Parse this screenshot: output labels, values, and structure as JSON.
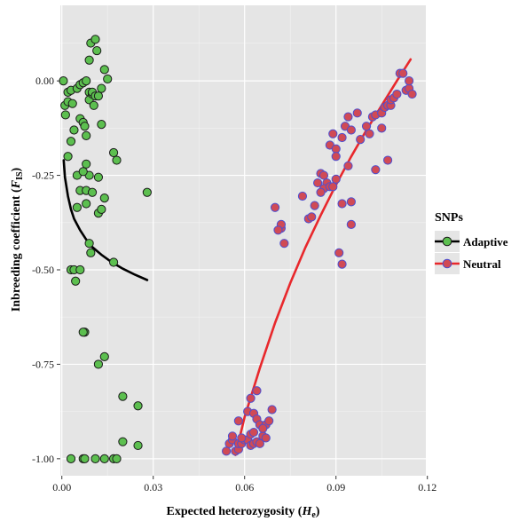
{
  "chart_data": {
    "type": "scatter",
    "title": "",
    "xlabel": "Expected heterozygosity",
    "xlabel_var": "H",
    "xlabel_sub": "e",
    "ylabel": "Inbreeding coefficient",
    "ylabel_var": "F",
    "ylabel_sub": "IS",
    "xlim": [
      -0.0005,
      0.1195
    ],
    "ylim": [
      -1.045,
      0.2
    ],
    "x_ticks": [
      0.0,
      0.03,
      0.06,
      0.09,
      0.12
    ],
    "x_tick_labels": [
      "0.00",
      "0.03",
      "0.06",
      "0.09",
      "0.12"
    ],
    "y_ticks": [
      0.0,
      -0.25,
      -0.5,
      -0.75,
      -1.0
    ],
    "y_tick_labels": [
      "0.00",
      "-0.25",
      "-0.50",
      "-0.75",
      "-1.00"
    ],
    "grid": true,
    "legend": {
      "title": "SNPs",
      "placement": "right"
    },
    "series": [
      {
        "name": "Adaptive",
        "point_fill": "#5cbf4f",
        "point_stroke": "#1b1b1b",
        "line_color": "#000000",
        "points": [
          [
            0.0005,
            0.0
          ],
          [
            0.001,
            -0.065
          ],
          [
            0.0012,
            -0.09
          ],
          [
            0.002,
            -0.03
          ],
          [
            0.003,
            -0.025
          ],
          [
            0.002,
            -0.055
          ],
          [
            0.0035,
            -0.06
          ],
          [
            0.004,
            -0.13
          ],
          [
            0.003,
            -0.16
          ],
          [
            0.005,
            -0.02
          ],
          [
            0.006,
            -0.01
          ],
          [
            0.007,
            -0.005
          ],
          [
            0.006,
            -0.1
          ],
          [
            0.007,
            -0.11
          ],
          [
            0.0075,
            -0.12
          ],
          [
            0.008,
            -0.145
          ],
          [
            0.008,
            0.0
          ],
          [
            0.009,
            -0.03
          ],
          [
            0.009,
            -0.05
          ],
          [
            0.01,
            -0.035
          ],
          [
            0.01,
            -0.03
          ],
          [
            0.011,
            -0.04
          ],
          [
            0.0105,
            -0.065
          ],
          [
            0.012,
            -0.04
          ],
          [
            0.013,
            -0.02
          ],
          [
            0.0095,
            0.1
          ],
          [
            0.011,
            0.11
          ],
          [
            0.0115,
            0.08
          ],
          [
            0.009,
            0.055
          ],
          [
            0.014,
            0.03
          ],
          [
            0.015,
            0.005
          ],
          [
            0.013,
            -0.115
          ],
          [
            0.017,
            -0.19
          ],
          [
            0.018,
            -0.21
          ],
          [
            0.002,
            -0.2
          ],
          [
            0.005,
            -0.25
          ],
          [
            0.009,
            -0.25
          ],
          [
            0.007,
            -0.24
          ],
          [
            0.006,
            -0.29
          ],
          [
            0.008,
            -0.29
          ],
          [
            0.01,
            -0.295
          ],
          [
            0.008,
            -0.22
          ],
          [
            0.012,
            -0.255
          ],
          [
            0.014,
            -0.31
          ],
          [
            0.012,
            -0.35
          ],
          [
            0.013,
            -0.34
          ],
          [
            0.008,
            -0.325
          ],
          [
            0.005,
            -0.335
          ],
          [
            0.028,
            -0.295
          ],
          [
            0.009,
            -0.43
          ],
          [
            0.0095,
            -0.455
          ],
          [
            0.003,
            -0.5
          ],
          [
            0.004,
            -0.5
          ],
          [
            0.0045,
            -0.53
          ],
          [
            0.006,
            -0.5
          ],
          [
            0.017,
            -0.48
          ],
          [
            0.0075,
            -0.665
          ],
          [
            0.007,
            -0.665
          ],
          [
            0.014,
            -0.73
          ],
          [
            0.012,
            -0.75
          ],
          [
            0.02,
            -0.835
          ],
          [
            0.025,
            -0.86
          ],
          [
            0.02,
            -0.955
          ],
          [
            0.025,
            -0.965
          ],
          [
            0.003,
            -1.0
          ],
          [
            0.007,
            -1.0
          ],
          [
            0.0075,
            -1.0
          ],
          [
            0.011,
            -1.0
          ],
          [
            0.014,
            -1.0
          ],
          [
            0.017,
            -1.0
          ],
          [
            0.018,
            -1.0
          ]
        ],
        "fit": [
          [
            0.0006,
            -0.21
          ],
          [
            0.001,
            -0.255
          ],
          [
            0.002,
            -0.305
          ],
          [
            0.003,
            -0.34
          ],
          [
            0.004,
            -0.365
          ],
          [
            0.006,
            -0.395
          ],
          [
            0.008,
            -0.42
          ],
          [
            0.01,
            -0.44
          ],
          [
            0.013,
            -0.46
          ],
          [
            0.016,
            -0.478
          ],
          [
            0.02,
            -0.497
          ],
          [
            0.024,
            -0.513
          ],
          [
            0.028,
            -0.527
          ]
        ]
      },
      {
        "name": "Neutral",
        "point_fill": "#d04a55",
        "point_stroke": "#4d4fd0",
        "line_color": "#e8282c",
        "points": [
          [
            0.054,
            -0.98
          ],
          [
            0.055,
            -0.96
          ],
          [
            0.056,
            -0.95
          ],
          [
            0.057,
            -0.98
          ],
          [
            0.058,
            -0.975
          ],
          [
            0.056,
            -0.94
          ],
          [
            0.058,
            -0.96
          ],
          [
            0.059,
            -0.96
          ],
          [
            0.06,
            -0.95
          ],
          [
            0.061,
            -0.95
          ],
          [
            0.059,
            -0.945
          ],
          [
            0.062,
            -0.965
          ],
          [
            0.063,
            -0.96
          ],
          [
            0.064,
            -0.955
          ],
          [
            0.065,
            -0.96
          ],
          [
            0.066,
            -0.94
          ],
          [
            0.067,
            -0.945
          ],
          [
            0.062,
            -0.935
          ],
          [
            0.063,
            -0.93
          ],
          [
            0.058,
            -0.9
          ],
          [
            0.061,
            -0.875
          ],
          [
            0.062,
            -0.84
          ],
          [
            0.064,
            -0.82
          ],
          [
            0.063,
            -0.88
          ],
          [
            0.064,
            -0.895
          ],
          [
            0.065,
            -0.91
          ],
          [
            0.067,
            -0.91
          ],
          [
            0.068,
            -0.9
          ],
          [
            0.069,
            -0.87
          ],
          [
            0.066,
            -0.92
          ],
          [
            0.07,
            -0.335
          ],
          [
            0.072,
            -0.39
          ],
          [
            0.072,
            -0.38
          ],
          [
            0.073,
            -0.43
          ],
          [
            0.071,
            -0.395
          ],
          [
            0.079,
            -0.305
          ],
          [
            0.081,
            -0.365
          ],
          [
            0.082,
            -0.36
          ],
          [
            0.083,
            -0.33
          ],
          [
            0.084,
            -0.27
          ],
          [
            0.085,
            -0.245
          ],
          [
            0.086,
            -0.25
          ],
          [
            0.087,
            -0.27
          ],
          [
            0.086,
            -0.285
          ],
          [
            0.085,
            -0.295
          ],
          [
            0.088,
            -0.28
          ],
          [
            0.089,
            -0.28
          ],
          [
            0.09,
            -0.26
          ],
          [
            0.088,
            -0.17
          ],
          [
            0.089,
            -0.14
          ],
          [
            0.09,
            -0.18
          ],
          [
            0.09,
            -0.2
          ],
          [
            0.092,
            -0.15
          ],
          [
            0.093,
            -0.12
          ],
          [
            0.094,
            -0.095
          ],
          [
            0.095,
            -0.13
          ],
          [
            0.094,
            -0.225
          ],
          [
            0.095,
            -0.32
          ],
          [
            0.092,
            -0.325
          ],
          [
            0.091,
            -0.455
          ],
          [
            0.092,
            -0.485
          ],
          [
            0.095,
            -0.38
          ],
          [
            0.097,
            -0.085
          ],
          [
            0.098,
            -0.155
          ],
          [
            0.1,
            -0.12
          ],
          [
            0.101,
            -0.14
          ],
          [
            0.102,
            -0.095
          ],
          [
            0.103,
            -0.09
          ],
          [
            0.103,
            -0.235
          ],
          [
            0.105,
            -0.085
          ],
          [
            0.106,
            -0.07
          ],
          [
            0.107,
            -0.065
          ],
          [
            0.108,
            -0.065
          ],
          [
            0.108,
            -0.05
          ],
          [
            0.109,
            -0.045
          ],
          [
            0.11,
            -0.035
          ],
          [
            0.111,
            0.02
          ],
          [
            0.112,
            0.02
          ],
          [
            0.113,
            -0.025
          ],
          [
            0.114,
            -0.02
          ],
          [
            0.115,
            -0.035
          ],
          [
            0.114,
            0.0
          ],
          [
            0.107,
            -0.21
          ],
          [
            0.105,
            -0.125
          ]
        ],
        "fit": [
          [
            0.057,
            -0.99
          ],
          [
            0.06,
            -0.89
          ],
          [
            0.065,
            -0.76
          ],
          [
            0.07,
            -0.64
          ],
          [
            0.075,
            -0.535
          ],
          [
            0.08,
            -0.44
          ],
          [
            0.085,
            -0.355
          ],
          [
            0.09,
            -0.275
          ],
          [
            0.095,
            -0.2
          ],
          [
            0.1,
            -0.13
          ],
          [
            0.105,
            -0.065
          ],
          [
            0.11,
            0.0
          ],
          [
            0.1145,
            0.057
          ]
        ]
      }
    ]
  }
}
